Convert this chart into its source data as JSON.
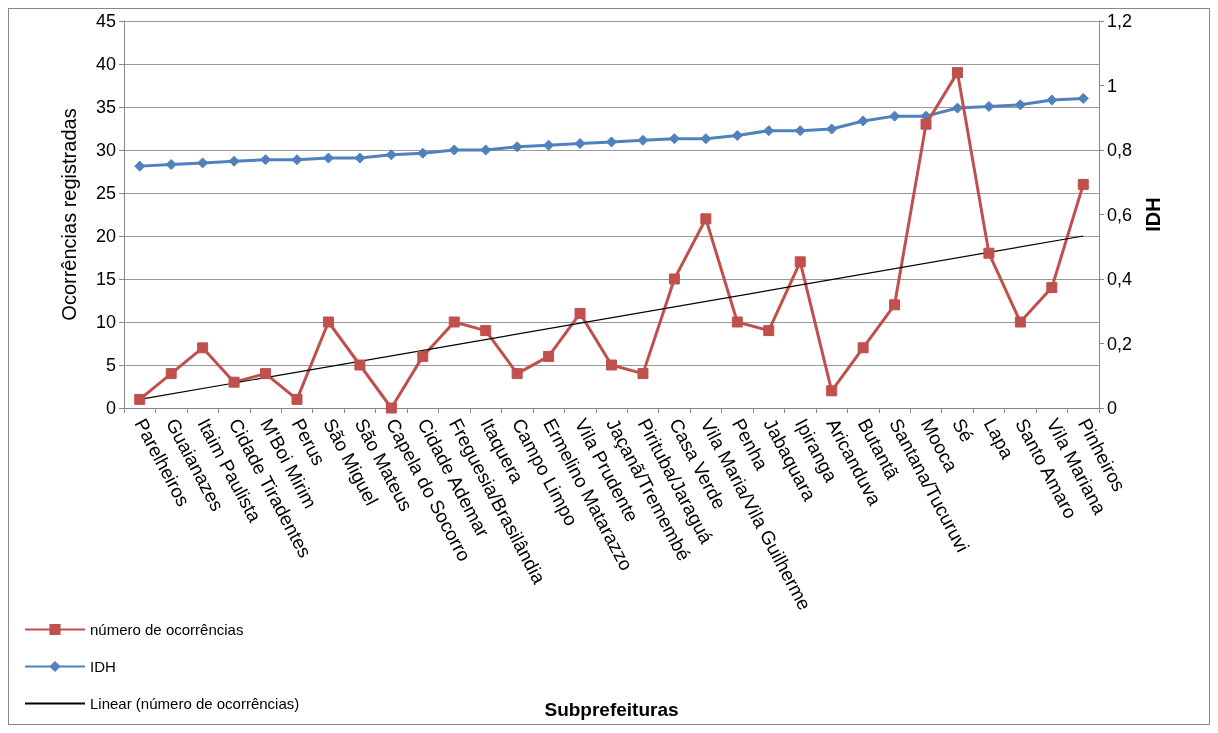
{
  "chart_data": {
    "type": "line",
    "xlabel": "Subprefeituras",
    "ylabel": "Ocorrências registradas",
    "y2label": "IDH",
    "categories": [
      "Parelheiros",
      "Guaianazes",
      "Itaim Paulista",
      "Cidade Tiradentes",
      "M'Boi Mirim",
      "Perus",
      "São Miguel",
      "São Mateus",
      "Capela do Socorro",
      "Cidade Ademar",
      "Freguesia/Brasilândia",
      "Itaquera",
      "Campo Limpo",
      "Ermelino Matarazzo",
      "Vila Prudente",
      "Jaçanã/Tremembé",
      "Pirituba/Jaraguá",
      "Casa Verde",
      "Vila Maria/Vila Guilherme",
      "Penha",
      "Jabaquara",
      "Ipiranga",
      "Aricanduva",
      "Butantã",
      "Santana/Tucuruvi",
      "Mooca",
      "Sé",
      "Lapa",
      "Santo Amaro",
      "Vila Mariana",
      "Pinheiros"
    ],
    "series": [
      {
        "name": "número de ocorrências",
        "color": "#c0504d",
        "marker": "square",
        "values": [
          1,
          4,
          7,
          3,
          4,
          1,
          10,
          5,
          0,
          6,
          10,
          9,
          4,
          6,
          11,
          5,
          4,
          15,
          22,
          10,
          9,
          17,
          2,
          7,
          12,
          33,
          39,
          18,
          10,
          14,
          26
        ]
      },
      {
        "name": "IDH",
        "color": "#4f81bd",
        "marker": "diamond",
        "axis": "y2",
        "values": [
          0.75,
          0.755,
          0.76,
          0.765,
          0.77,
          0.77,
          0.775,
          0.775,
          0.785,
          0.79,
          0.8,
          0.8,
          0.81,
          0.815,
          0.82,
          0.825,
          0.83,
          0.835,
          0.835,
          0.845,
          0.86,
          0.86,
          0.865,
          0.89,
          0.905,
          0.905,
          0.93,
          0.935,
          0.94,
          0.955,
          0.96
        ]
      },
      {
        "name": "Linear (número de ocorrências)",
        "color": "#000000",
        "marker": "none",
        "x": [
          "Parelheiros",
          "Pinheiros"
        ],
        "values": [
          1,
          20
        ]
      }
    ],
    "ylim": [
      0,
      45
    ],
    "yticks": [
      0,
      5,
      10,
      15,
      20,
      25,
      30,
      35,
      40,
      45
    ],
    "y2lim": [
      0,
      1.2
    ],
    "y2ticks": [
      {
        "value": 0,
        "label": "0"
      },
      {
        "value": 0.2,
        "label": "0,2"
      },
      {
        "value": 0.4,
        "label": "0,4"
      },
      {
        "value": 0.6,
        "label": "0,6"
      },
      {
        "value": 0.8,
        "label": "0,8"
      },
      {
        "value": 1,
        "label": "1"
      },
      {
        "value": 1.2,
        "label": "1,2"
      }
    ],
    "grid": "y",
    "legend": "bottom left",
    "line_style": "solid"
  }
}
